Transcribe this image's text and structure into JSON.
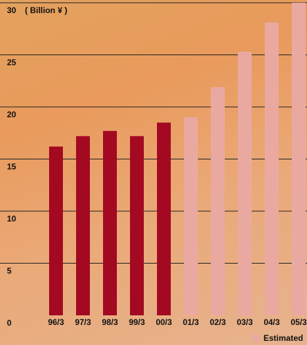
{
  "chart_data": {
    "type": "bar",
    "y_label": "( Billion ¥ )",
    "categories": [
      "96/3",
      "97/3",
      "98/3",
      "99/3",
      "00/3",
      "01/3",
      "02/3",
      "03/3",
      "04/3",
      "05/3"
    ],
    "series": [
      {
        "color": "#a30a22",
        "values": [
          16.2,
          17.2,
          17.7,
          17.2,
          18.5,
          null,
          null,
          null,
          null,
          null
        ]
      },
      {
        "name": "Estimated",
        "color": "#eaa9a0",
        "values": [
          null,
          null,
          null,
          null,
          null,
          19.0,
          21.9,
          25.3,
          28.1,
          30.0
        ]
      }
    ],
    "ylim": [
      0,
      30
    ],
    "yticks": [
      0,
      5,
      10,
      15,
      20,
      25,
      30
    ],
    "grid": true
  }
}
